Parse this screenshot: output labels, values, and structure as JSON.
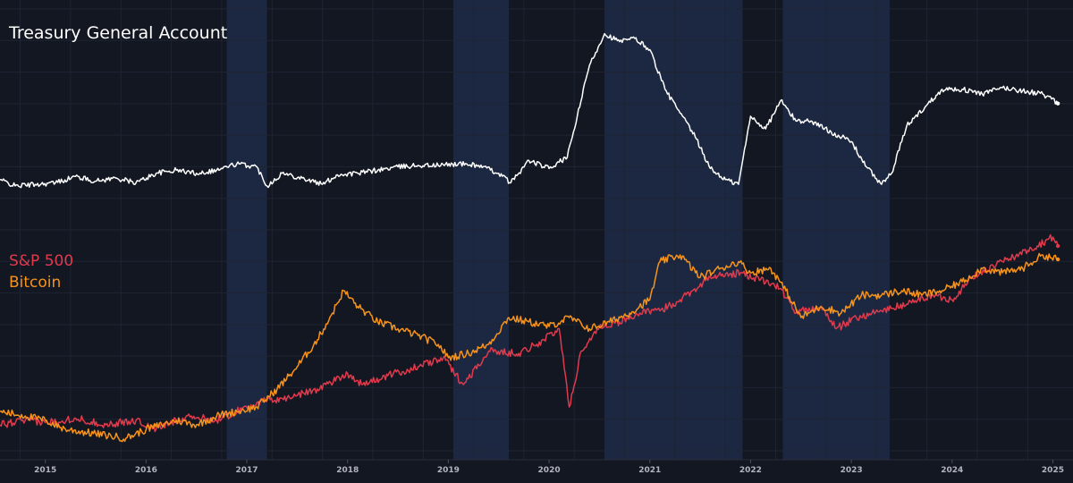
{
  "chart_data": {
    "type": "line",
    "title": "Treasury General Account",
    "xlabel": "",
    "ylabel": "",
    "x_range": [
      2014.55,
      2025.2
    ],
    "x_ticks": [
      "2015",
      "2016",
      "2017",
      "2018",
      "2019",
      "2020",
      "2021",
      "2022",
      "2023",
      "2024",
      "2025"
    ],
    "y_scale": "normalized, two stacked panes (no y-axis labels shown)",
    "colors": {
      "background": "#131722",
      "grid": "#1e2433",
      "shade": "#1e2c47",
      "tga": "#ffffff",
      "sp500": "#e03a4d",
      "bitcoin": "#f7931a",
      "axis_text": "#b2b5be"
    },
    "shaded_periods": [
      [
        2016.8,
        2017.2
      ],
      [
        2019.05,
        2019.6
      ],
      [
        2020.55,
        2021.92
      ],
      [
        2022.32,
        2023.38
      ]
    ],
    "panes": [
      {
        "name": "upper",
        "y_range": [
          0,
          110
        ],
        "series": [
          {
            "name": "Treasury General Account",
            "color": "#ffffff",
            "x": [
              2014.55,
              2014.7,
              2014.9,
              2015.1,
              2015.3,
              2015.5,
              2015.7,
              2015.9,
              2016.1,
              2016.3,
              2016.5,
              2016.7,
              2016.9,
              2017.1,
              2017.2,
              2017.35,
              2017.55,
              2017.75,
              2017.9,
              2018.1,
              2018.3,
              2018.5,
              2018.7,
              2018.9,
              2019.1,
              2019.3,
              2019.5,
              2019.62,
              2019.8,
              2020.0,
              2020.1,
              2020.18,
              2020.28,
              2020.4,
              2020.55,
              2020.7,
              2020.85,
              2021.0,
              2021.15,
              2021.3,
              2021.45,
              2021.6,
              2021.75,
              2021.88,
              2022.0,
              2022.15,
              2022.3,
              2022.45,
              2022.6,
              2022.8,
              2023.0,
              2023.15,
              2023.3,
              2023.4,
              2023.55,
              2023.75,
              2023.9,
              2024.1,
              2024.3,
              2024.5,
              2024.7,
              2024.9,
              2025.05
            ],
            "values": [
              8,
              4,
              5,
              6,
              10,
              7,
              9,
              6,
              12,
              14,
              12,
              14,
              18,
              16,
              4,
              12,
              9,
              5,
              11,
              12,
              14,
              16,
              17,
              17,
              18,
              17,
              12,
              6,
              20,
              15,
              19,
              22,
              48,
              80,
              100,
              95,
              97,
              90,
              65,
              50,
              35,
              15,
              8,
              5,
              48,
              40,
              58,
              45,
              45,
              38,
              32,
              16,
              5,
              12,
              42,
              55,
              65,
              65,
              62,
              66,
              64,
              62,
              56
            ]
          }
        ]
      },
      {
        "name": "lower",
        "y_range": [
          0,
          100
        ],
        "series": [
          {
            "name": "S&P 500",
            "color": "#e03a4d",
            "x": [
              2014.55,
              2014.8,
              2015.0,
              2015.3,
              2015.6,
              2015.9,
              2016.1,
              2016.4,
              2016.7,
              2016.9,
              2017.1,
              2017.4,
              2017.7,
              2018.0,
              2018.15,
              2018.4,
              2018.7,
              2018.95,
              2019.15,
              2019.4,
              2019.7,
              2019.95,
              2020.1,
              2020.2,
              2020.32,
              2020.5,
              2020.7,
              2020.9,
              2021.1,
              2021.3,
              2021.6,
              2021.9,
              2022.1,
              2022.3,
              2022.45,
              2022.7,
              2022.85,
              2023.05,
              2023.3,
              2023.55,
              2023.8,
              2024.0,
              2024.2,
              2024.5,
              2024.75,
              2025.0,
              2025.05
            ],
            "values": [
              12,
              14,
              13,
              15,
              12,
              14,
              10,
              16,
              14,
              18,
              22,
              24,
              28,
              35,
              30,
              34,
              38,
              42,
              30,
              45,
              44,
              50,
              55,
              20,
              45,
              56,
              58,
              62,
              63,
              68,
              78,
              80,
              77,
              73,
              62,
              65,
              55,
              60,
              63,
              66,
              70,
              68,
              78,
              85,
              90,
              96,
              92
            ]
          },
          {
            "name": "Bitcoin",
            "color": "#f7931a",
            "x": [
              2014.55,
              2014.8,
              2015.0,
              2015.2,
              2015.5,
              2015.8,
              2016.0,
              2016.3,
              2016.5,
              2016.7,
              2016.9,
              2017.1,
              2017.3,
              2017.5,
              2017.7,
              2017.85,
              2017.96,
              2018.1,
              2018.3,
              2018.5,
              2018.7,
              2018.9,
              2019.0,
              2019.2,
              2019.4,
              2019.6,
              2019.8,
              2020.0,
              2020.2,
              2020.4,
              2020.6,
              2020.8,
              2021.0,
              2021.1,
              2021.3,
              2021.5,
              2021.7,
              2021.88,
              2022.0,
              2022.2,
              2022.35,
              2022.5,
              2022.7,
              2022.9,
              2023.1,
              2023.3,
              2023.5,
              2023.7,
              2023.9,
              2024.1,
              2024.3,
              2024.5,
              2024.7,
              2024.9,
              2025.05
            ],
            "values": [
              18,
              16,
              14,
              10,
              8,
              6,
              10,
              14,
              12,
              16,
              18,
              20,
              28,
              38,
              50,
              62,
              72,
              65,
              58,
              55,
              52,
              48,
              42,
              44,
              48,
              60,
              58,
              56,
              60,
              55,
              58,
              62,
              68,
              85,
              88,
              78,
              82,
              85,
              80,
              82,
              72,
              60,
              65,
              62,
              70,
              70,
              72,
              70,
              72,
              76,
              82,
              80,
              82,
              88,
              86
            ]
          }
        ]
      }
    ]
  }
}
